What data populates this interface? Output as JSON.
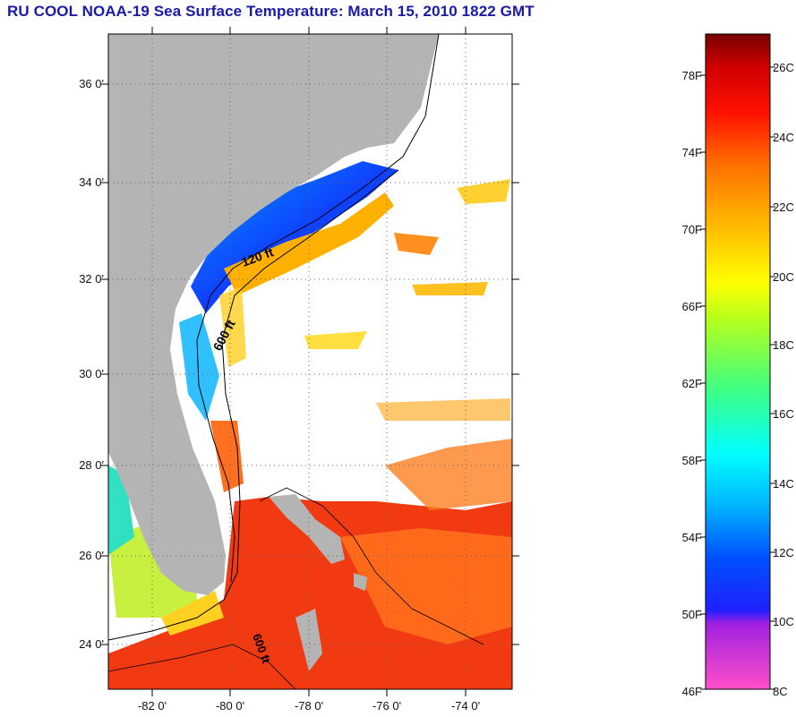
{
  "title": "RU COOL  NOAA-19  Sea Surface Temperature:  March 15, 2010 1822 GMT",
  "lat_labels": [
    "36 0'",
    "34 0'",
    "32 0'",
    "30 0'",
    "28 0'",
    "26 0'",
    "24 0'"
  ],
  "lon_labels": [
    "-82 0'",
    "-80 0'",
    "-78 0'",
    "-76 0'",
    "-74 0'"
  ],
  "contour_labels": [
    "120 ft",
    "600 ft",
    "600 ft"
  ],
  "colorbar": {
    "fahrenheit": [
      "78F",
      "74F",
      "70F",
      "66F",
      "62F",
      "58F",
      "54F",
      "50F",
      "46F"
    ],
    "celsius": [
      "26C",
      "24C",
      "22C",
      "20C",
      "18C",
      "16C",
      "14C",
      "12C",
      "10C",
      "8C"
    ]
  },
  "colors": {
    "title": "#1a1aa8",
    "land": "#b4b4b4",
    "cold": "#0a3cff",
    "warm": "#f03010"
  }
}
